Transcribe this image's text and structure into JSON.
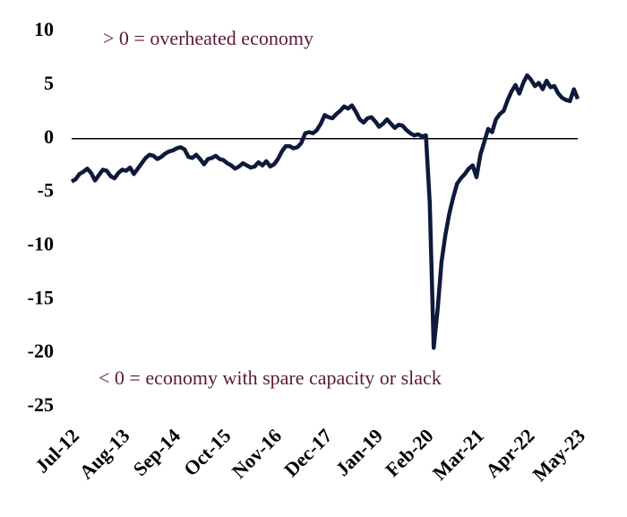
{
  "chart_data": {
    "type": "line",
    "annotations": [
      "> 0 = overheated economy",
      "< 0 = economy with spare capacity or slack"
    ],
    "categories": [
      "Jul-12",
      null,
      null,
      null,
      null,
      null,
      null,
      null,
      null,
      null,
      null,
      null,
      null,
      "Aug-13",
      null,
      null,
      null,
      null,
      null,
      null,
      null,
      null,
      null,
      null,
      null,
      null,
      "Sep-14",
      null,
      null,
      null,
      null,
      null,
      null,
      null,
      null,
      null,
      null,
      null,
      null,
      "Oct-15",
      null,
      null,
      null,
      null,
      null,
      null,
      null,
      null,
      null,
      null,
      null,
      null,
      "Nov-16",
      null,
      null,
      null,
      null,
      null,
      null,
      null,
      null,
      null,
      null,
      null,
      null,
      "Dec-17",
      null,
      null,
      null,
      null,
      null,
      null,
      null,
      null,
      null,
      null,
      null,
      null,
      "Jan-19",
      null,
      null,
      null,
      null,
      null,
      null,
      null,
      null,
      null,
      null,
      null,
      null,
      "Feb-20",
      null,
      null,
      null,
      null,
      null,
      null,
      null,
      null,
      null,
      null,
      null,
      null,
      "Mar-21",
      null,
      null,
      null,
      null,
      null,
      null,
      null,
      null,
      null,
      null,
      null,
      null,
      "Apr-22",
      null,
      null,
      null,
      null,
      null,
      null,
      null,
      null,
      null,
      null,
      null,
      null,
      "May-23"
    ],
    "series": [
      {
        "color": "#0d1a3a",
        "values": [
          -4,
          -3.8,
          -3.3,
          -3.1,
          -2.8,
          -3.2,
          -3.9,
          -3.4,
          -2.9,
          -3.0,
          -3.5,
          -3.7,
          -3.2,
          -2.9,
          -3.0,
          -2.7,
          -3.3,
          -2.8,
          -2.3,
          -1.8,
          -1.5,
          -1.6,
          -1.9,
          -1.7,
          -1.4,
          -1.2,
          -1.1,
          -0.9,
          -0.8,
          -1.0,
          -1.7,
          -1.8,
          -1.5,
          -1.9,
          -2.4,
          -1.9,
          -1.8,
          -1.6,
          -1.9,
          -2.0,
          -2.3,
          -2.5,
          -2.8,
          -2.6,
          -2.3,
          -2.5,
          -2.7,
          -2.6,
          -2.2,
          -2.5,
          -2.1,
          -2.6,
          -2.4,
          -1.9,
          -1.2,
          -0.7,
          -0.7,
          -0.9,
          -0.8,
          -0.4,
          0.5,
          0.6,
          0.5,
          0.8,
          1.4,
          2.2,
          2.0,
          1.9,
          2.3,
          2.6,
          3.0,
          2.8,
          3.1,
          2.5,
          1.8,
          1.5,
          1.9,
          2.0,
          1.6,
          1.1,
          1.4,
          1.8,
          1.4,
          1.0,
          1.3,
          1.2,
          0.8,
          0.5,
          0.3,
          0.4,
          0.2,
          0.3,
          -6,
          -19.5,
          -16,
          -11.5,
          -9,
          -7,
          -5.5,
          -4.2,
          -3.7,
          -3.3,
          -2.8,
          -2.5,
          -3.6,
          -1.5,
          -0.3,
          0.9,
          0.6,
          1.8,
          2.3,
          2.6,
          3.6,
          4.4,
          5.0,
          4.2,
          5.2,
          5.9,
          5.5,
          4.9,
          5.2,
          4.6,
          5.4,
          4.8,
          4.9,
          4.2,
          3.8,
          3.6,
          3.5,
          4.6,
          3.7
        ]
      }
    ],
    "ylim": [
      -25,
      10
    ],
    "yticks": [
      -25,
      -20,
      -15,
      -10,
      -5,
      0,
      5,
      10
    ]
  }
}
